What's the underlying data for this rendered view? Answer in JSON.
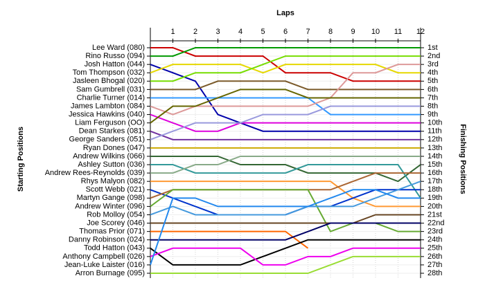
{
  "chart_data": {
    "type": "line",
    "x_label": "Laps",
    "y_label": "Starting Positions",
    "y2_label": "Finishing Positions",
    "x": [
      0,
      1,
      2,
      3,
      4,
      5,
      6,
      7,
      8,
      9,
      10,
      11,
      12
    ],
    "xlim": [
      0,
      12
    ],
    "xticks": [
      1,
      2,
      3,
      4,
      5,
      6,
      7,
      8,
      9,
      10,
      11,
      12
    ],
    "ylim": [
      1,
      28
    ],
    "yticks": [
      {
        "value": 1,
        "label": "1st"
      },
      {
        "value": 2,
        "label": "2nd"
      },
      {
        "value": 3,
        "label": "3rd"
      },
      {
        "value": 4,
        "label": "4th"
      },
      {
        "value": 5,
        "label": "5th"
      },
      {
        "value": 6,
        "label": "6th"
      },
      {
        "value": 7,
        "label": "7th"
      },
      {
        "value": 8,
        "label": "8th"
      },
      {
        "value": 9,
        "label": "9th"
      },
      {
        "value": 10,
        "label": "10th"
      },
      {
        "value": 11,
        "label": "11th"
      },
      {
        "value": 12,
        "label": "12th"
      },
      {
        "value": 13,
        "label": "13th"
      },
      {
        "value": 14,
        "label": "14th"
      },
      {
        "value": 15,
        "label": "15th"
      },
      {
        "value": 16,
        "label": "16th"
      },
      {
        "value": 17,
        "label": "17th"
      },
      {
        "value": 18,
        "label": "18th"
      },
      {
        "value": 19,
        "label": "19th"
      },
      {
        "value": 20,
        "label": "20th"
      },
      {
        "value": 21,
        "label": "21st"
      },
      {
        "value": 22,
        "label": "22nd"
      },
      {
        "value": 23,
        "label": "23rd"
      },
      {
        "value": 24,
        "label": "24th"
      },
      {
        "value": 25,
        "label": "25th"
      },
      {
        "value": 26,
        "label": "26th"
      },
      {
        "value": 27,
        "label": "27th"
      },
      {
        "value": 28,
        "label": "28th"
      }
    ],
    "grid": true,
    "series": [
      {
        "name": "Lee Ward (080)",
        "color": "#cc0000",
        "values": [
          1,
          1,
          2,
          2,
          2,
          2,
          4,
          4,
          4,
          5,
          5,
          5,
          5
        ]
      },
      {
        "name": "Rino Russo (094)",
        "color": "#009900",
        "values": [
          2,
          2,
          1,
          1,
          1,
          1,
          1,
          1,
          1,
          1,
          1,
          1,
          1
        ]
      },
      {
        "name": "Josh Hatton (044)",
        "color": "#0000aa",
        "values": [
          3,
          4,
          5,
          9,
          10,
          11,
          11,
          11,
          11,
          11,
          11,
          11,
          11
        ]
      },
      {
        "name": "Tom Thompson (032)",
        "color": "#e6d800",
        "values": [
          4,
          3,
          3,
          3,
          3,
          4,
          3,
          3,
          3,
          3,
          3,
          4,
          4
        ]
      },
      {
        "name": "Jasleen Bhogal (020)",
        "color": "#77dd00",
        "values": [
          5,
          5,
          4,
          4,
          4,
          3,
          2,
          2,
          2,
          2,
          2,
          2,
          2
        ]
      },
      {
        "name": "Sam Gumbrell (031)",
        "color": "#7b5a2a",
        "values": [
          6,
          6,
          6,
          5,
          5,
          5,
          5,
          6,
          6,
          6,
          6,
          6,
          6
        ]
      },
      {
        "name": "Charlie Turner (014)",
        "color": "#3399ff",
        "values": [
          7,
          7,
          7,
          7,
          7,
          7,
          7,
          7,
          9,
          9,
          9,
          9,
          9
        ]
      },
      {
        "name": "James Lambton (084)",
        "color": "#dd9999",
        "values": [
          8,
          9,
          8,
          8,
          8,
          8,
          8,
          8,
          7,
          4,
          4,
          3,
          3
        ]
      },
      {
        "name": "Jessica Hawkins (040)",
        "color": "#dd00dd",
        "values": [
          9,
          10,
          11,
          11,
          10,
          10,
          10,
          10,
          10,
          10,
          10,
          10,
          10
        ]
      },
      {
        "name": "Liam Ferguson (OO)",
        "color": "#666600",
        "values": [
          10,
          8,
          8,
          7,
          6,
          6,
          6,
          7,
          7,
          7,
          7,
          7,
          7
        ]
      },
      {
        "name": "Dean Starkes (081)",
        "color": "#7030a0",
        "values": [
          11,
          12,
          12,
          12,
          12,
          12,
          12,
          12,
          12,
          12,
          12,
          12,
          12
        ]
      },
      {
        "name": "George Sanders (051)",
        "color": "#9999dd",
        "values": [
          12,
          11,
          10,
          10,
          10,
          9,
          9,
          9,
          8,
          8,
          8,
          8,
          8
        ]
      },
      {
        "name": "Ryan Dones (047)",
        "color": "#ccaa00",
        "values": [
          13,
          13,
          13,
          13,
          13,
          13,
          13,
          13,
          13,
          13,
          13,
          13,
          13
        ]
      },
      {
        "name": "Andrew Wilkins (066)",
        "color": "#336633",
        "values": [
          14,
          14,
          14,
          14,
          15,
          15,
          15,
          16,
          16,
          16,
          16,
          17,
          15
        ]
      },
      {
        "name": "Ashley Sutton (036)",
        "color": "#339999",
        "values": [
          15,
          15,
          16,
          16,
          16,
          16,
          16,
          15,
          15,
          15,
          15,
          15,
          19
        ]
      },
      {
        "name": "Andrew Rees-Reynolds (039)",
        "color": "#88aa88",
        "values": [
          16,
          16,
          15,
          15,
          14,
          14,
          14,
          14,
          14,
          14,
          14,
          14,
          14
        ]
      },
      {
        "name": "Rhys Malyon (082)",
        "color": "#ff9933",
        "values": [
          17,
          17,
          17,
          17,
          17,
          17,
          17,
          17,
          17,
          19,
          20,
          20,
          20
        ]
      },
      {
        "name": "Scott Webb (021)",
        "color": "#0033cc",
        "values": [
          18,
          19,
          20,
          21,
          21,
          21,
          21,
          20,
          20,
          19,
          18,
          18,
          18
        ]
      },
      {
        "name": "Martyn Gange (098)",
        "color": "#aa6633",
        "values": [
          19,
          18,
          18,
          18,
          18,
          18,
          18,
          18,
          18,
          17,
          16,
          16,
          16
        ]
      },
      {
        "name": "Andrew Winter (096)",
        "color": "#66aa33",
        "values": [
          20,
          18,
          18,
          18,
          18,
          18,
          18,
          18,
          23,
          22,
          22,
          23,
          23
        ]
      },
      {
        "name": "Rob Molloy (054)",
        "color": "#4499dd",
        "values": [
          21,
          20,
          21,
          21,
          21,
          21,
          21,
          20,
          20,
          20,
          19,
          18,
          17
        ]
      },
      {
        "name": "Joe Scorey (046)",
        "color": "#664422",
        "values": [
          22,
          22,
          22,
          22,
          22,
          22,
          22,
          22,
          22,
          22,
          21,
          21,
          21
        ]
      },
      {
        "name": "Thomas Prior (071)",
        "color": "#ff6600",
        "values": [
          23,
          23,
          23,
          23,
          23,
          23,
          23,
          25,
          null,
          null,
          null,
          null,
          null
        ]
      },
      {
        "name": "Danny Robinson (024)",
        "color": "#000066",
        "values": [
          24,
          24,
          24,
          24,
          24,
          24,
          24,
          23,
          22,
          22,
          22,
          22,
          22
        ]
      },
      {
        "name": "Todd Hatton (043)",
        "color": "#000000",
        "values": [
          25,
          27,
          27,
          27,
          27,
          26,
          25,
          24,
          24,
          24,
          24,
          24,
          24
        ]
      },
      {
        "name": "Anthony Campbell (026)",
        "color": "#ee00ee",
        "values": [
          26,
          25,
          25,
          25,
          25,
          27,
          27,
          26,
          26,
          25,
          25,
          25,
          25
        ]
      },
      {
        "name": "Jean-Luke Laister (016)",
        "color": "#2288ee",
        "values": [
          27,
          19,
          19,
          20,
          20,
          20,
          20,
          20,
          19,
          18,
          18,
          19,
          19
        ]
      },
      {
        "name": "Arron Burnage (095)",
        "color": "#99dd33",
        "values": [
          28,
          28,
          28,
          28,
          28,
          28,
          28,
          28,
          27,
          26,
          26,
          26,
          26
        ]
      }
    ]
  }
}
